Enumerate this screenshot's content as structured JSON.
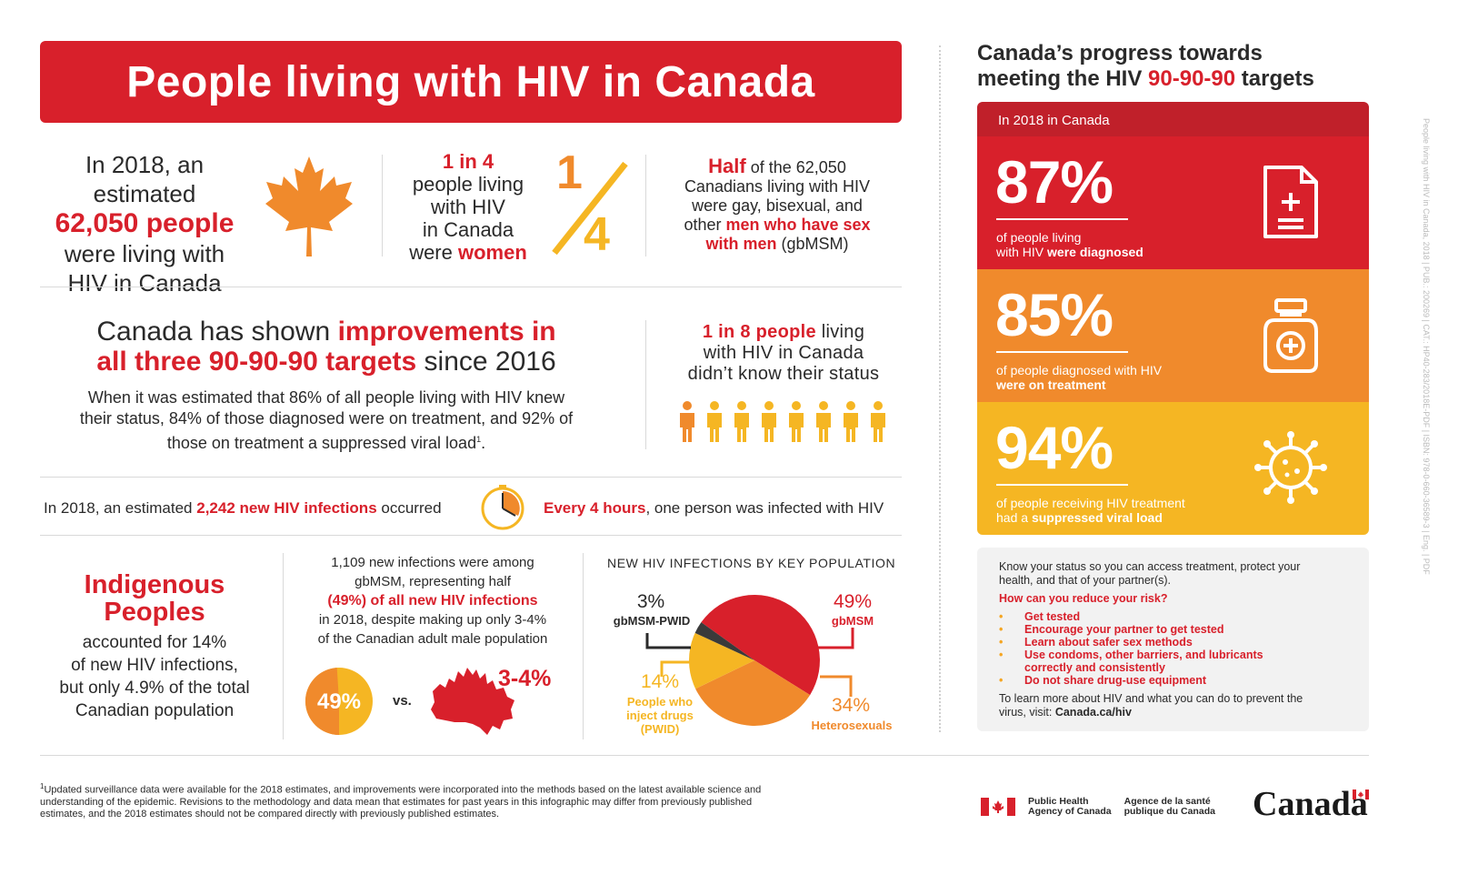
{
  "title": "People living with HIV in Canada",
  "estimate": {
    "line1": "In 2018, an estimated",
    "highlight": "62,050 people",
    "line2": "were living with",
    "line3": "HIV in Canada"
  },
  "women": {
    "highlight": "1 in 4",
    "line1": "people living",
    "line2": "with HIV",
    "line3": "in Canada",
    "line4": "were",
    "highlight2": "women",
    "fraction_num": "1",
    "fraction_den": "4"
  },
  "gbmsm_half": {
    "highlight": "Half",
    "t1": "of the 62,050",
    "t2": "Canadians living with HIV",
    "t3": "were gay, bisexual, and",
    "t4": "other",
    "highlight2": "men who have sex",
    "highlight3": "with men",
    "t5": "(gbMSM)"
  },
  "improvements": {
    "t1": "Canada has shown",
    "h1": "improvements in",
    "h2": "all three 90-90-90 targets",
    "t2": "since 2016",
    "body1": "When it was estimated that 86% of all people living with HIV knew",
    "body2": "their status, 84% of those diagnosed were on treatment, and 92% of",
    "body3": "those on treatment a suppressed viral load",
    "body_sup": "1",
    "body_end": "."
  },
  "unaware": {
    "highlight": "1 in 8 people",
    "t1": "living",
    "t2": "with HIV in Canada",
    "t3": "didn’t know their status",
    "people_count": 8,
    "highlighted_count": 1
  },
  "new_infections": {
    "t1": "In 2018, an estimated",
    "highlight": "2,242 new HIV infections",
    "t2": "occurred",
    "highlight2": "Every 4 hours",
    "t3": ", one person was infected with HIV"
  },
  "indigenous": {
    "title1": "Indigenous",
    "title2": "Peoples",
    "b1": "accounted for 14%",
    "b2": "of new HIV infections,",
    "b3": "but only 4.9% of the total",
    "b4": "Canadian population"
  },
  "gbmsm_new": {
    "l1": "1,109 new infections were among",
    "l2": "gbMSM, representing half",
    "l3": "(49%) of all new HIV infections",
    "l4": "in 2018, despite making up only 3-4%",
    "l5": "of the Canadian adult male population",
    "circle_label": "49%",
    "circle_fraction": 0.49,
    "vs": "vs.",
    "map_label": "3-4%"
  },
  "chart_data": {
    "type": "pie",
    "title": "NEW HIV INFECTIONS BY KEY POPULATION",
    "series": [
      {
        "name": "gbMSM",
        "value": 49,
        "label": "49%",
        "color": "#d8202b"
      },
      {
        "name": "Heterosexuals",
        "value": 34,
        "label": "34%",
        "color": "#f08a2c"
      },
      {
        "name": "People who inject drugs (PWID)",
        "value": 14,
        "label": "14%",
        "color": "#f5b623"
      },
      {
        "name": "gbMSM-PWID",
        "value": 3,
        "label": "3%",
        "color": "#3a3a3a"
      }
    ],
    "pwid_sub1": "People who",
    "pwid_sub2": "inject drugs",
    "pwid_sub3": "(PWID)"
  },
  "footnote": {
    "sup": "1",
    "l1": "Updated surveillance data were available for the 2018 estimates, and improvements were incorporated into the methods based on the latest available science and",
    "l2": "understanding of the epidemic. Revisions to the methodology and data mean that estimates for past years in this infographic may differ from previously published",
    "l3": "estimates, and the 2018 estimates should not be compared directly with previously published estimates."
  },
  "progress": {
    "head1": "Canada’s progress towards",
    "head2": "meeting the HIV",
    "head_highlight": "90-90-90",
    "head3": "targets",
    "panel_label": "In 2018 in Canada",
    "items": [
      {
        "value": "87%",
        "d1": "of people living",
        "d2": "with HIV",
        "d2b": "were diagnosed",
        "color": "#d8202b",
        "icon": "document-plus-icon"
      },
      {
        "value": "85%",
        "d1": "of people diagnosed with HIV",
        "d2": "",
        "d2b": "were on treatment",
        "color": "#f08a2c",
        "icon": "medicine-bottle-icon"
      },
      {
        "value": "94%",
        "d1": "of people receiving HIV treatment",
        "d2": "had a",
        "d2b": "suppressed viral load",
        "color": "#f5b623",
        "icon": "virus-icon"
      }
    ]
  },
  "tips": {
    "intro1": "Know your status so you can access treatment, protect your",
    "intro2": "health, and that of your partner(s).",
    "question": "How can you reduce your risk?",
    "items": [
      "Get tested",
      "Encourage your partner to get tested",
      "Learn about safer sex methods",
      "Use condoms, other barriers, and lubricants",
      "correctly and consistently",
      "Do not share drug-use equipment"
    ],
    "more1": "To learn more about HIV and what you can do to prevent the",
    "more2": "virus, visit:",
    "link": "Canada.ca/hiv"
  },
  "side_text": "People living with HIV in Canada, 2018  |  PUB.: 200269  |  CAT.: HP40-283/2018E-PDF  |  ISBN: 978-0-660-36589-3  |  Eng.  |  PDF",
  "agency": {
    "en1": "Public Health",
    "en2": "Agency of Canada",
    "fr1": "Agence de la santé",
    "fr2": "publique du Canada",
    "wordmark": "Canada"
  }
}
